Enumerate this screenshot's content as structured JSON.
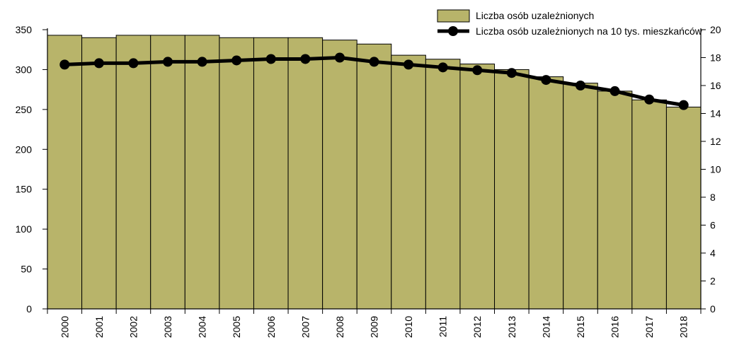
{
  "chart_data": {
    "type": "bar+line",
    "categories": [
      "2000",
      "2001",
      "2002",
      "2003",
      "2004",
      "2005",
      "2006",
      "2007",
      "2008",
      "2009",
      "2010",
      "2011",
      "2012",
      "2013",
      "2014",
      "2015",
      "2016",
      "2017",
      "2018"
    ],
    "series": [
      {
        "name": "Liczba osób uzależnionych",
        "type": "bar",
        "axis": "left",
        "values": [
          343,
          340,
          343,
          343,
          343,
          340,
          340,
          340,
          337,
          332,
          318,
          313,
          307,
          300,
          291,
          283,
          273,
          262,
          253
        ]
      },
      {
        "name": "Liczba osób uzależnionych na 10 tys. mieszkańców",
        "type": "line",
        "axis": "right",
        "values": [
          17.5,
          17.6,
          17.6,
          17.7,
          17.7,
          17.8,
          17.9,
          17.9,
          18.0,
          17.7,
          17.5,
          17.3,
          17.1,
          16.9,
          16.4,
          16.0,
          15.6,
          15.0,
          14.6
        ]
      }
    ],
    "y_left": {
      "lim": [
        0,
        350
      ],
      "ticks": [
        0,
        50,
        100,
        150,
        200,
        250,
        300,
        350
      ]
    },
    "y_right": {
      "lim": [
        0,
        20
      ],
      "ticks": [
        0,
        2,
        4,
        6,
        8,
        10,
        12,
        14,
        16,
        18,
        20
      ]
    },
    "legend_position": "top-right",
    "grid": false,
    "colors": {
      "bar_fill": "#b8b46a",
      "bar_stroke": "#000000",
      "line": "#000000"
    }
  }
}
